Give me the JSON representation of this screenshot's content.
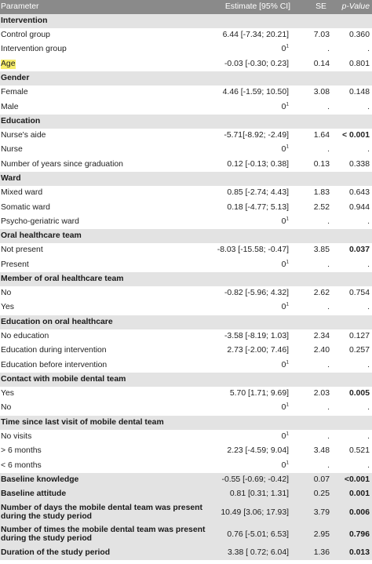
{
  "header": {
    "parameter": "Parameter",
    "estimate": "Estimate [95% CI]",
    "se": "SE",
    "pvalue": "p-Value"
  },
  "rows": [
    {
      "type": "section",
      "label": "Intervention"
    },
    {
      "type": "data",
      "label": "Control group",
      "est": "6.44 [-7.34; 20.21]",
      "se": "7.03",
      "p": "0.360"
    },
    {
      "type": "data",
      "label": "Intervention group",
      "est": "0",
      "sup": "1",
      "se": ".",
      "p": "."
    },
    {
      "type": "data",
      "label": "Age",
      "highlight": true,
      "est": "-0.03 [-0.30; 0.23]",
      "se": "0.14",
      "p": "0.801"
    },
    {
      "type": "section",
      "label": "Gender"
    },
    {
      "type": "data",
      "label": "Female",
      "est": "4.46 [-1.59; 10.50]",
      "se": "3.08",
      "p": "0.148"
    },
    {
      "type": "data",
      "label": "Male",
      "est": "0",
      "sup": "1",
      "se": ".",
      "p": "."
    },
    {
      "type": "section",
      "label": "Education"
    },
    {
      "type": "data",
      "label": "Nurse's aide",
      "est": "-5.71[-8.92; -2.49]",
      "se": "1.64",
      "p": "< 0.001",
      "pbold": true
    },
    {
      "type": "data",
      "label": "Nurse",
      "est": "0",
      "sup": "1",
      "se": ".",
      "p": "."
    },
    {
      "type": "data",
      "label": "Number of years since graduation",
      "est": "0.12 [-0.13; 0.38]",
      "se": "0.13",
      "p": "0.338"
    },
    {
      "type": "section",
      "label": "Ward"
    },
    {
      "type": "data",
      "label": "Mixed ward",
      "est": "0.85 [-2.74; 4.43]",
      "se": "1.83",
      "p": "0.643"
    },
    {
      "type": "data",
      "label": "Somatic ward",
      "est": "0.18 [-4.77; 5.13]",
      "se": "2.52",
      "p": "0.944"
    },
    {
      "type": "data",
      "label": "Psycho-geriatric ward",
      "est": "0",
      "sup": "1",
      "se": ".",
      "p": "."
    },
    {
      "type": "section",
      "label": "Oral healthcare team"
    },
    {
      "type": "data",
      "label": "Not present",
      "est": "-8.03 [-15.58; -0.47]",
      "se": "3.85",
      "p": "0.037",
      "pbold": true
    },
    {
      "type": "data",
      "label": "Present",
      "est": "0",
      "sup": "1",
      "se": ".",
      "p": "."
    },
    {
      "type": "section",
      "label": "Member of oral healthcare team"
    },
    {
      "type": "data",
      "label": "No",
      "est": "-0.82 [-5.96; 4.32]",
      "se": "2.62",
      "p": "0.754"
    },
    {
      "type": "data",
      "label": "Yes",
      "est": "0",
      "sup": "1",
      "se": ".",
      "p": "."
    },
    {
      "type": "section",
      "label": "Education on oral healthcare"
    },
    {
      "type": "data",
      "label": "No education",
      "est": "-3.58 [-8.19; 1.03]",
      "se": "2.34",
      "p": "0.127"
    },
    {
      "type": "data",
      "label": "Education during intervention",
      "est": "2.73 [-2.00; 7.46]",
      "se": "2.40",
      "p": "0.257"
    },
    {
      "type": "data",
      "label": "Education before intervention",
      "est": "0",
      "sup": "1",
      "se": ".",
      "p": "."
    },
    {
      "type": "section",
      "label": "Contact with mobile dental team"
    },
    {
      "type": "data",
      "label": "Yes",
      "est": "5.70 [1.71; 9.69]",
      "se": "2.03",
      "p": "0.005",
      "pbold": true
    },
    {
      "type": "data",
      "label": "No",
      "est": "0",
      "sup": "1",
      "se": ".",
      "p": "."
    },
    {
      "type": "section",
      "label": "Time since last visit of mobile dental team"
    },
    {
      "type": "data",
      "label": "No visits",
      "est": "0",
      "sup": "1",
      "se": ".",
      "p": "."
    },
    {
      "type": "data",
      "label": "> 6 months",
      "est": "2.23 [-4.59; 9.04]",
      "se": "3.48",
      "p": "0.521"
    },
    {
      "type": "data",
      "label": "< 6 months",
      "est": "0",
      "sup": "1",
      "se": ".",
      "p": "."
    },
    {
      "type": "bold",
      "label": "Baseline knowledge",
      "est": "-0.55 [-0.69; -0.42]",
      "se": "0.07",
      "p": "<0.001",
      "pbold": true
    },
    {
      "type": "bold",
      "label": "Baseline attitude",
      "est": "0.81 [0.31; 1.31]",
      "se": "0.25",
      "p": "0.001",
      "pbold": true
    },
    {
      "type": "tall",
      "label": "Number of days the mobile dental team was present during  the study period",
      "est": "10.49 [3.06; 17.93]",
      "se": "3.79",
      "p": "0.006",
      "pbold": true
    },
    {
      "type": "tall",
      "label": "Number of times the mobile dental team was present during the study period",
      "est": "0.76 [-5.01; 6.53]",
      "se": "2.95",
      "p": "0.796",
      "pbold": false
    },
    {
      "type": "bold",
      "label": "Duration of the study period",
      "est": "3.38 [ 0.72; 6.04]",
      "se": "1.36",
      "p": "0.013",
      "pbold": true
    }
  ]
}
